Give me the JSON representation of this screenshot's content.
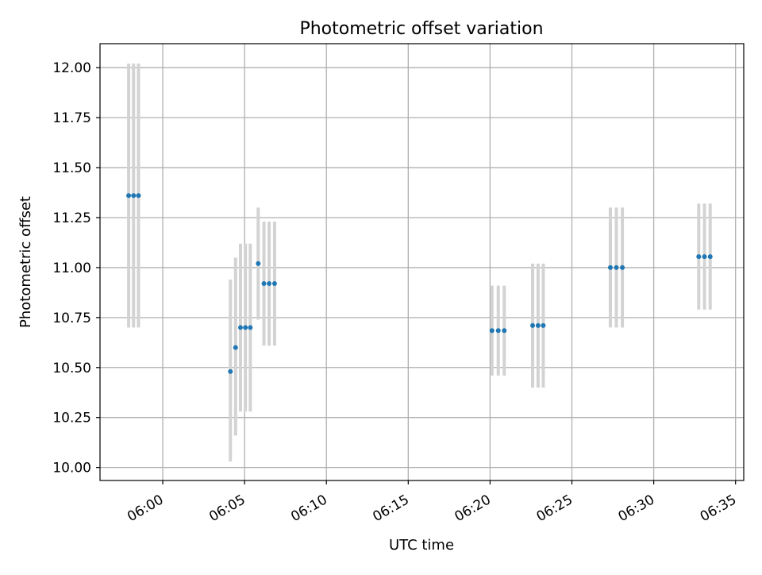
{
  "chart_data": {
    "type": "scatter",
    "title": "Photometric offset variation",
    "xlabel": "UTC time",
    "ylabel": "Photometric offset",
    "grid": true,
    "x_unit": "UTC time (HH:MM)",
    "xlim": [
      "05:56:10",
      "06:35:30"
    ],
    "ylim": [
      9.935,
      12.12
    ],
    "x_ticks": [
      "06:00",
      "06:05",
      "06:10",
      "06:15",
      "06:20",
      "06:25",
      "06:30",
      "06:35"
    ],
    "y_ticks": [
      "10.00",
      "10.25",
      "10.50",
      "10.75",
      "11.00",
      "11.25",
      "11.50",
      "11.75",
      "12.00"
    ],
    "colors": {
      "points": "#1f77b4",
      "errorbars": "#d3d3d3",
      "grid": "#b0b0b0"
    },
    "series": [
      {
        "points": [
          {
            "x": "05:57:55",
            "y": 11.36,
            "ylo": 10.7,
            "yhi": 12.02
          },
          {
            "x": "05:58:13",
            "y": 11.36,
            "ylo": 10.7,
            "yhi": 12.02
          },
          {
            "x": "05:58:31",
            "y": 11.36,
            "ylo": 10.7,
            "yhi": 12.02
          },
          {
            "x": "06:04:08",
            "y": 10.48,
            "ylo": 10.03,
            "yhi": 10.94
          },
          {
            "x": "06:04:27",
            "y": 10.6,
            "ylo": 10.16,
            "yhi": 11.05
          },
          {
            "x": "06:04:45",
            "y": 10.7,
            "ylo": 10.28,
            "yhi": 11.12
          },
          {
            "x": "06:05:03",
            "y": 10.7,
            "ylo": 10.28,
            "yhi": 11.12
          },
          {
            "x": "06:05:21",
            "y": 10.7,
            "ylo": 10.28,
            "yhi": 11.12
          },
          {
            "x": "06:05:50",
            "y": 11.02,
            "ylo": 10.74,
            "yhi": 11.3
          },
          {
            "x": "06:06:11",
            "y": 10.92,
            "ylo": 10.61,
            "yhi": 11.23
          },
          {
            "x": "06:06:30",
            "y": 10.92,
            "ylo": 10.61,
            "yhi": 11.23
          },
          {
            "x": "06:06:50",
            "y": 10.92,
            "ylo": 10.61,
            "yhi": 11.23
          },
          {
            "x": "06:20:07",
            "y": 10.685,
            "ylo": 10.46,
            "yhi": 10.91
          },
          {
            "x": "06:20:30",
            "y": 10.685,
            "ylo": 10.46,
            "yhi": 10.91
          },
          {
            "x": "06:20:52",
            "y": 10.685,
            "ylo": 10.46,
            "yhi": 10.91
          },
          {
            "x": "06:22:36",
            "y": 10.71,
            "ylo": 10.4,
            "yhi": 11.02
          },
          {
            "x": "06:22:56",
            "y": 10.71,
            "ylo": 10.4,
            "yhi": 11.02
          },
          {
            "x": "06:23:15",
            "y": 10.71,
            "ylo": 10.4,
            "yhi": 11.02
          },
          {
            "x": "06:27:21",
            "y": 11.0,
            "ylo": 10.7,
            "yhi": 11.3
          },
          {
            "x": "06:27:43",
            "y": 11.0,
            "ylo": 10.7,
            "yhi": 11.3
          },
          {
            "x": "06:28:05",
            "y": 11.0,
            "ylo": 10.7,
            "yhi": 11.3
          },
          {
            "x": "06:32:45",
            "y": 11.055,
            "ylo": 10.79,
            "yhi": 11.32
          },
          {
            "x": "06:33:06",
            "y": 11.055,
            "ylo": 10.79,
            "yhi": 11.32
          },
          {
            "x": "06:33:27",
            "y": 11.055,
            "ylo": 10.79,
            "yhi": 11.32
          }
        ]
      }
    ]
  }
}
